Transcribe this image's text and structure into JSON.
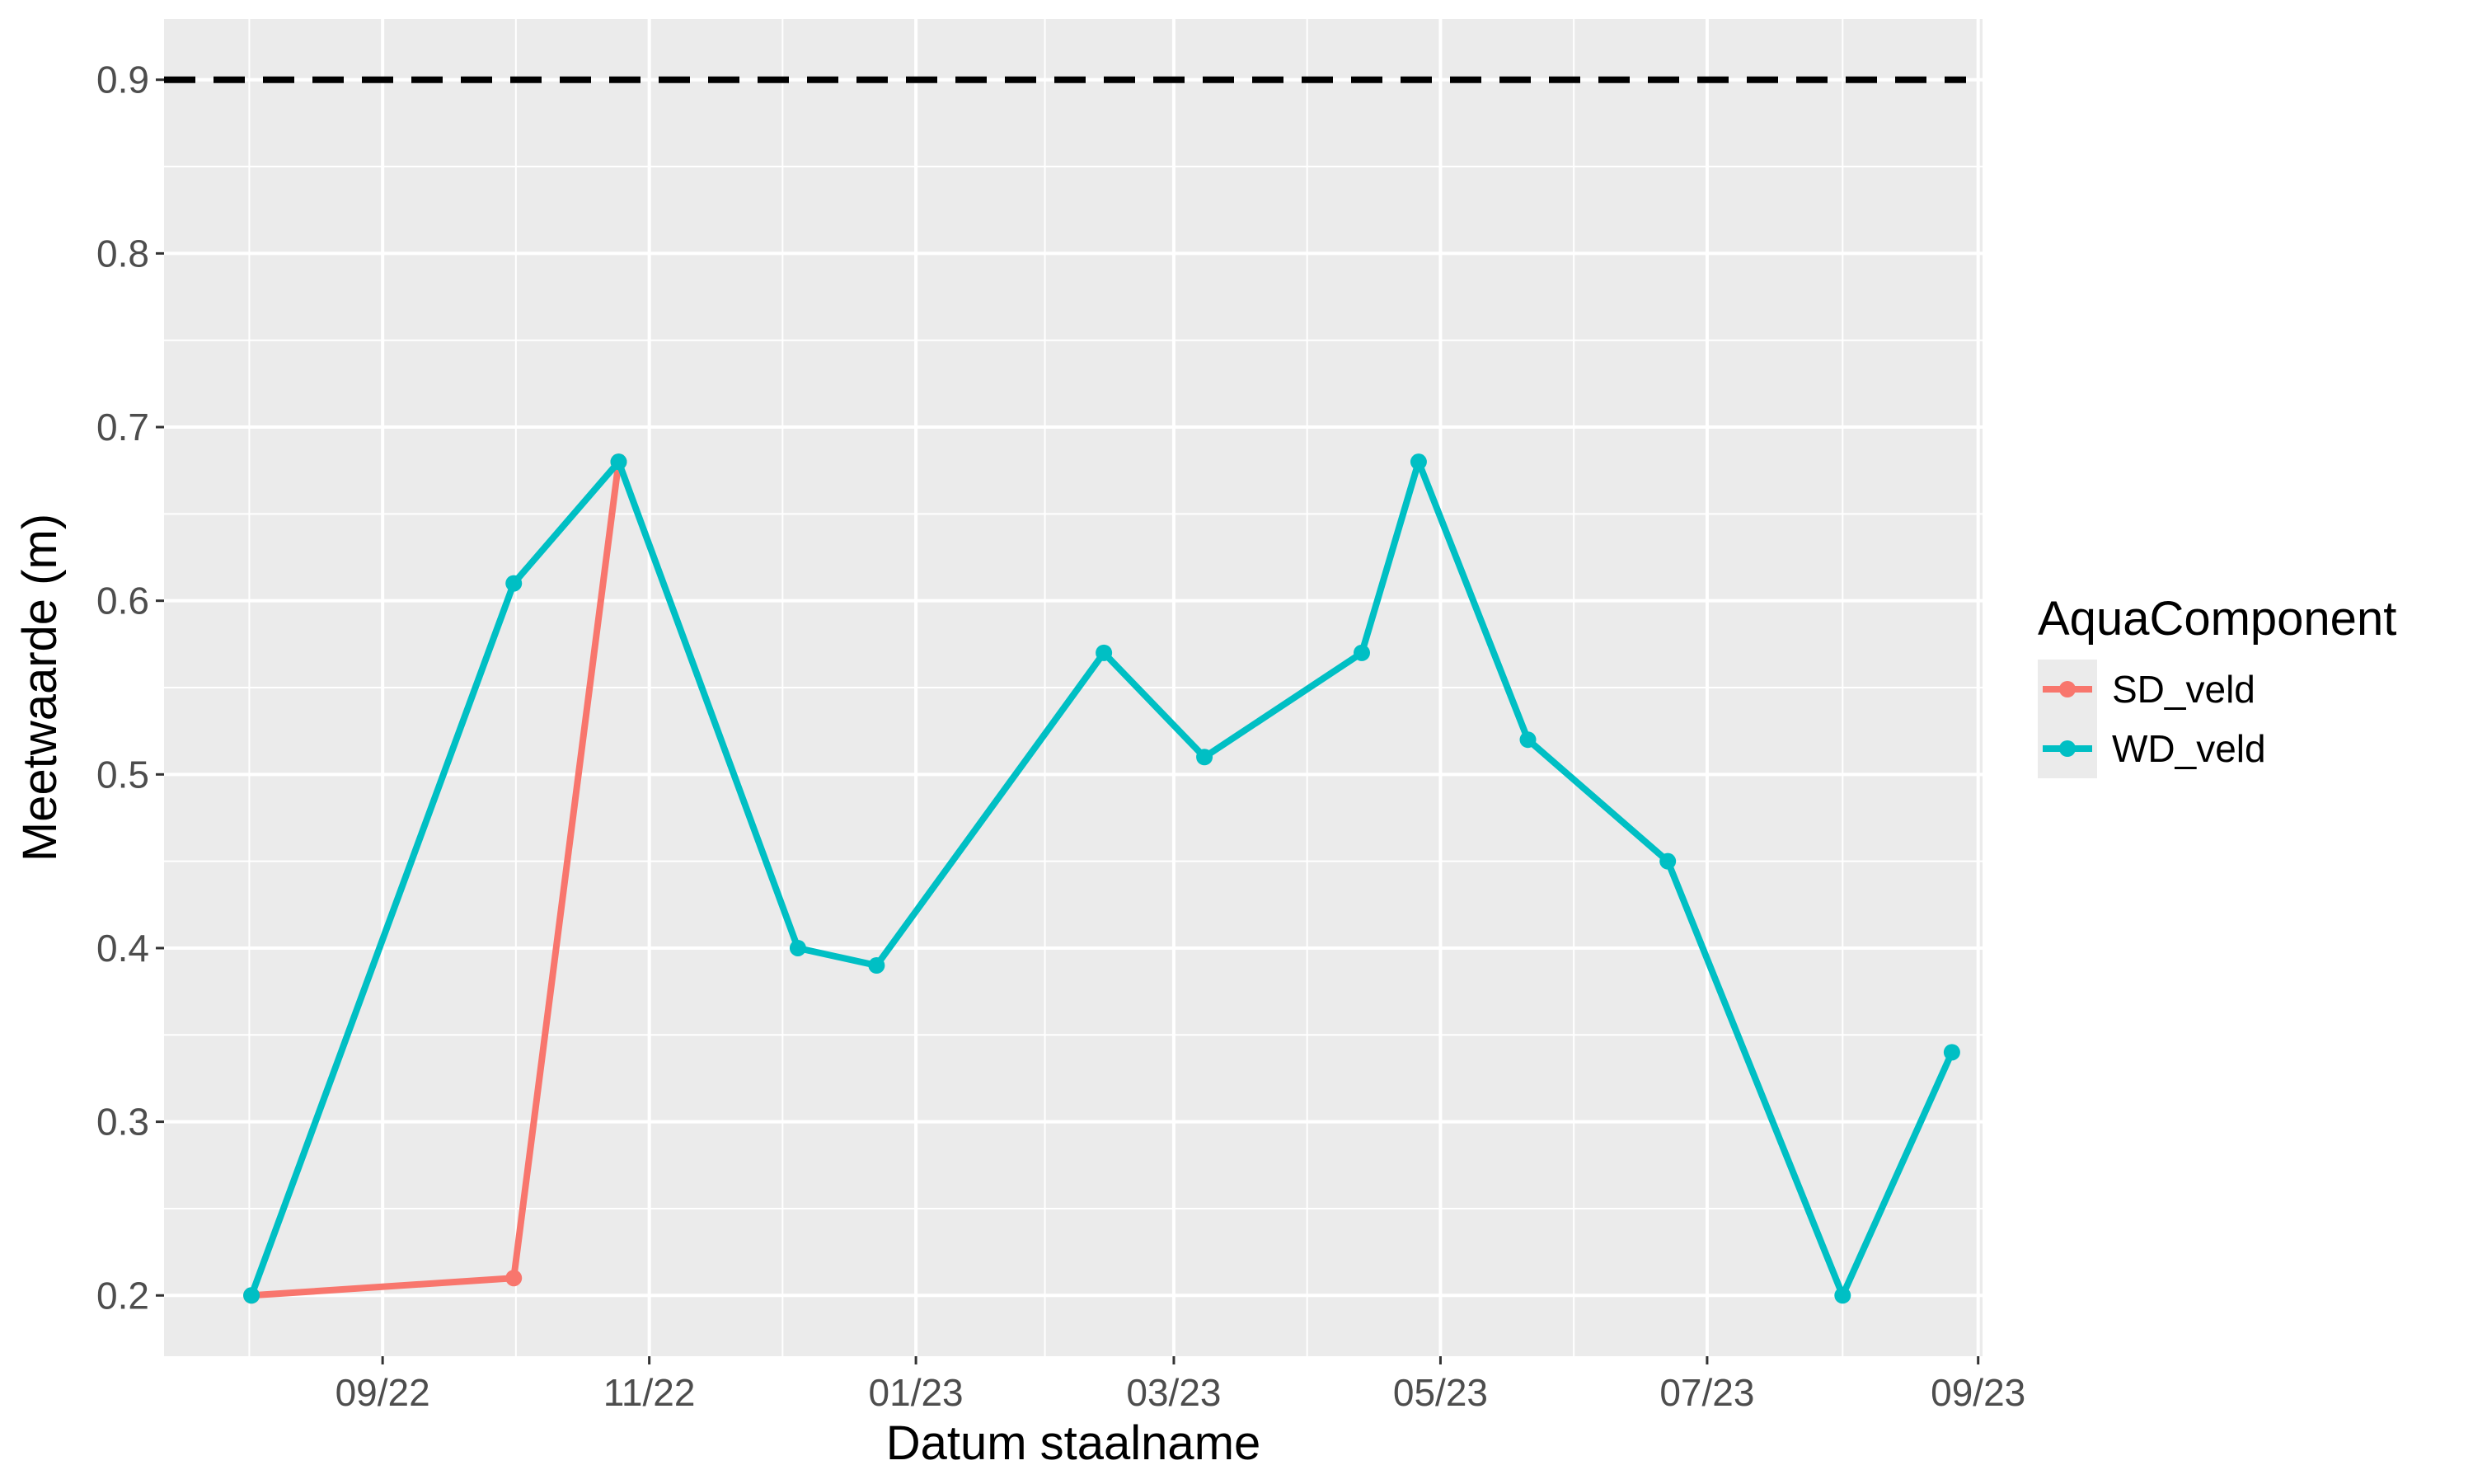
{
  "chart_data": {
    "type": "line",
    "xlabel": "Datum staalname",
    "ylabel": "Meetwaarde (m)",
    "x_tick_labels": [
      "09/22",
      "11/22",
      "01/23",
      "03/23",
      "05/23",
      "07/23",
      "09/23"
    ],
    "x_tick_dates": [
      "2022-09-01",
      "2022-11-01",
      "2023-01-01",
      "2023-03-01",
      "2023-05-01",
      "2023-07-01",
      "2023-09-01"
    ],
    "x_range": [
      "2022-07-13",
      "2023-09-02"
    ],
    "y_tick_labels": [
      "0.2",
      "0.3",
      "0.4",
      "0.5",
      "0.6",
      "0.7",
      "0.8",
      "0.9"
    ],
    "y_ticks": [
      0.2,
      0.3,
      0.4,
      0.5,
      0.6,
      0.7,
      0.8,
      0.9
    ],
    "ylim": [
      0.165,
      0.935
    ],
    "grid": true,
    "legend": {
      "title": "AquaComponent",
      "position": "right"
    },
    "reference_line": {
      "y": 0.9,
      "style": "dashed",
      "color": "#000000"
    },
    "series": [
      {
        "name": "SD_veld",
        "color": "#F8766D",
        "x": [
          "2022-08-02",
          "2022-10-01",
          "2022-10-25"
        ],
        "y": [
          0.2,
          0.21,
          0.68
        ]
      },
      {
        "name": "WD_veld",
        "color": "#00BFC4",
        "x": [
          "2022-08-02",
          "2022-10-01",
          "2022-10-25",
          "2022-12-05",
          "2022-12-23",
          "2023-02-13",
          "2023-03-08",
          "2023-04-13",
          "2023-04-26",
          "2023-05-21",
          "2023-06-22",
          "2023-08-01",
          "2023-08-26"
        ],
        "y": [
          0.2,
          0.61,
          0.68,
          0.4,
          0.39,
          0.57,
          0.51,
          0.57,
          0.68,
          0.52,
          0.45,
          0.2,
          0.34
        ]
      }
    ]
  }
}
